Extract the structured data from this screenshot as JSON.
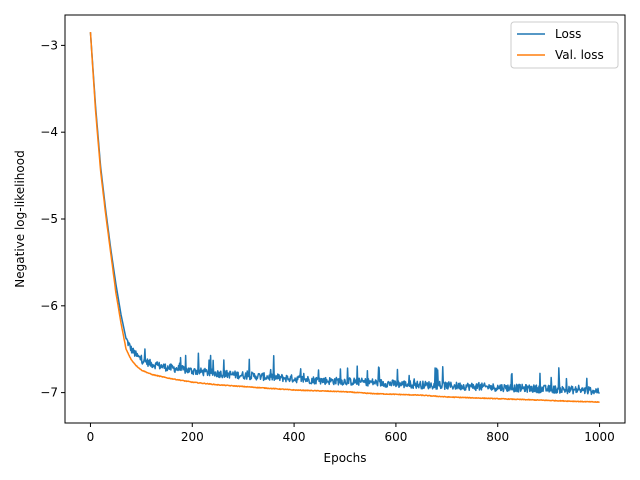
{
  "chart_data": {
    "type": "line",
    "title": "",
    "xlabel": "Epochs",
    "ylabel": "Negative log-likelihood",
    "xlim": [
      -50,
      1050
    ],
    "ylim": [
      -7.35,
      -2.65
    ],
    "xticks": [
      0,
      200,
      400,
      600,
      800,
      1000
    ],
    "xtick_labels": [
      "0",
      "200",
      "400",
      "600",
      "800",
      "1000"
    ],
    "yticks": [
      -3,
      -4,
      -5,
      -6,
      -7
    ],
    "ytick_labels": [
      "−3",
      "−4",
      "−5",
      "−6",
      "−7"
    ],
    "legend_position": "top-right",
    "grid": false,
    "series": [
      {
        "name": "Loss",
        "color": "#1f77b4",
        "style": "noisy",
        "x": [
          0,
          10,
          20,
          30,
          40,
          50,
          60,
          70,
          80,
          90,
          100,
          120,
          150,
          200,
          250,
          300,
          350,
          400,
          450,
          500,
          550,
          600,
          650,
          700,
          750,
          800,
          850,
          900,
          950,
          1000
        ],
        "y": [
          -2.85,
          -3.7,
          -4.4,
          -4.9,
          -5.35,
          -5.75,
          -6.1,
          -6.38,
          -6.5,
          -6.57,
          -6.62,
          -6.67,
          -6.71,
          -6.75,
          -6.78,
          -6.8,
          -6.82,
          -6.84,
          -6.86,
          -6.87,
          -6.88,
          -6.9,
          -6.91,
          -6.92,
          -6.93,
          -6.94,
          -6.95,
          -6.96,
          -6.97,
          -6.98
        ]
      },
      {
        "name": "Val. loss",
        "color": "#ff7f0e",
        "style": "smooth",
        "x": [
          0,
          10,
          20,
          30,
          40,
          50,
          60,
          70,
          80,
          90,
          100,
          120,
          150,
          200,
          250,
          300,
          350,
          400,
          450,
          500,
          550,
          600,
          650,
          700,
          750,
          800,
          850,
          900,
          950,
          1000
        ],
        "y": [
          -2.85,
          -3.75,
          -4.45,
          -4.95,
          -5.4,
          -5.85,
          -6.2,
          -6.5,
          -6.62,
          -6.69,
          -6.74,
          -6.79,
          -6.83,
          -6.88,
          -6.91,
          -6.93,
          -6.95,
          -6.97,
          -6.98,
          -6.99,
          -7.01,
          -7.02,
          -7.03,
          -7.05,
          -7.06,
          -7.07,
          -7.08,
          -7.09,
          -7.1,
          -7.11
        ]
      }
    ]
  }
}
